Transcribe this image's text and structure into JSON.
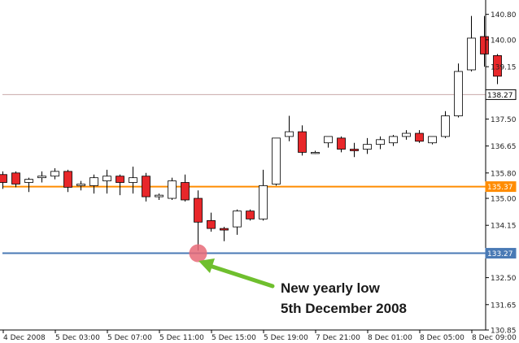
{
  "chart_data": {
    "type": "candlestick",
    "ylim": [
      130.85,
      141.15
    ],
    "y_ticks": [
      "130.85",
      "131.65",
      "132.50",
      "133.35",
      "134.15",
      "135.00",
      "135.80",
      "136.65",
      "137.50",
      "138.35",
      "139.15",
      "140.00",
      "140.80"
    ],
    "x_labels": [
      "4 Dec 2008",
      "5 Dec 03:00",
      "5 Dec 07:00",
      "5 Dec 11:00",
      "5 Dec 15:00",
      "5 Dec 19:00",
      "7 Dec 21:00",
      "8 Dec 01:00",
      "8 Dec 05:00",
      "8 Dec 09:00"
    ],
    "candles": [
      {
        "o": 135.75,
        "h": 135.85,
        "l": 135.3,
        "c": 135.5
      },
      {
        "o": 135.8,
        "h": 135.85,
        "l": 135.35,
        "c": 135.45
      },
      {
        "o": 135.5,
        "h": 135.65,
        "l": 135.2,
        "c": 135.6
      },
      {
        "o": 135.65,
        "h": 135.85,
        "l": 135.5,
        "c": 135.7
      },
      {
        "o": 135.7,
        "h": 135.95,
        "l": 135.6,
        "c": 135.85
      },
      {
        "o": 135.85,
        "h": 135.9,
        "l": 135.2,
        "c": 135.35
      },
      {
        "o": 135.4,
        "h": 135.55,
        "l": 135.25,
        "c": 135.45
      },
      {
        "o": 135.4,
        "h": 135.75,
        "l": 135.15,
        "c": 135.65
      },
      {
        "o": 135.55,
        "h": 135.9,
        "l": 135.15,
        "c": 135.7
      },
      {
        "o": 135.7,
        "h": 135.75,
        "l": 135.1,
        "c": 135.5
      },
      {
        "o": 135.5,
        "h": 136.0,
        "l": 135.15,
        "c": 135.65
      },
      {
        "o": 135.7,
        "h": 135.8,
        "l": 134.9,
        "c": 135.05
      },
      {
        "o": 135.05,
        "h": 135.15,
        "l": 134.95,
        "c": 135.1
      },
      {
        "o": 135.0,
        "h": 135.65,
        "l": 134.95,
        "c": 135.55
      },
      {
        "o": 135.5,
        "h": 135.75,
        "l": 134.9,
        "c": 134.95
      },
      {
        "o": 135.0,
        "h": 135.25,
        "l": 133.35,
        "c": 134.25
      },
      {
        "o": 134.3,
        "h": 134.55,
        "l": 133.95,
        "c": 134.05
      },
      {
        "o": 134.05,
        "h": 134.1,
        "l": 133.65,
        "c": 134.0
      },
      {
        "o": 134.1,
        "h": 134.65,
        "l": 133.85,
        "c": 134.6
      },
      {
        "o": 134.6,
        "h": 134.65,
        "l": 134.3,
        "c": 134.35
      },
      {
        "o": 134.35,
        "h": 135.9,
        "l": 134.3,
        "c": 135.4
      },
      {
        "o": 135.45,
        "h": 136.9,
        "l": 135.4,
        "c": 136.9
      },
      {
        "o": 136.95,
        "h": 137.6,
        "l": 136.8,
        "c": 137.1
      },
      {
        "o": 137.1,
        "h": 137.3,
        "l": 136.35,
        "c": 136.45
      },
      {
        "o": 136.45,
        "h": 136.5,
        "l": 136.4,
        "c": 136.45
      },
      {
        "o": 136.75,
        "h": 136.95,
        "l": 136.6,
        "c": 136.95
      },
      {
        "o": 136.9,
        "h": 136.95,
        "l": 136.45,
        "c": 136.55
      },
      {
        "o": 136.55,
        "h": 136.75,
        "l": 136.3,
        "c": 136.5
      },
      {
        "o": 136.55,
        "h": 136.9,
        "l": 136.4,
        "c": 136.7
      },
      {
        "o": 136.7,
        "h": 136.95,
        "l": 136.55,
        "c": 136.85
      },
      {
        "o": 136.75,
        "h": 137.0,
        "l": 136.65,
        "c": 136.95
      },
      {
        "o": 136.95,
        "h": 137.15,
        "l": 136.85,
        "c": 137.05
      },
      {
        "o": 137.05,
        "h": 137.15,
        "l": 136.75,
        "c": 136.8
      },
      {
        "o": 136.75,
        "h": 136.95,
        "l": 136.7,
        "c": 136.95
      },
      {
        "o": 136.95,
        "h": 137.75,
        "l": 136.9,
        "c": 137.6
      },
      {
        "o": 137.6,
        "h": 139.25,
        "l": 137.55,
        "c": 139.0
      },
      {
        "o": 139.05,
        "h": 140.75,
        "l": 139.0,
        "c": 140.05
      },
      {
        "o": 140.1,
        "h": 140.75,
        "l": 139.15,
        "c": 139.55
      },
      {
        "o": 139.5,
        "h": 139.55,
        "l": 138.6,
        "c": 138.85
      }
    ],
    "levels": [
      {
        "label": "138.27",
        "value": 138.27,
        "line_color": "#c8a8a8",
        "box_bg": "#ffffff",
        "box_fg": "#000000"
      },
      {
        "label": "135.37",
        "value": 135.37,
        "line_color": "#ff8c00",
        "box_bg": "#ff8c00",
        "box_fg": "#ffffff"
      },
      {
        "label": "133.27",
        "value": 133.27,
        "line_color": "#4a7ab5",
        "box_bg": "#4a7ab5",
        "box_fg": "#ffffff"
      }
    ],
    "marker": {
      "candle_index": 15,
      "value": 133.27,
      "color": "#e86a78"
    },
    "annotation": {
      "line1": "New yearly low",
      "line2": "5th December 2008",
      "arrow_color": "#6fbf2e"
    },
    "colors": {
      "bull": "#ffffff",
      "bear": "#e8272a",
      "outline": "#000000",
      "axis": "#000000"
    }
  }
}
